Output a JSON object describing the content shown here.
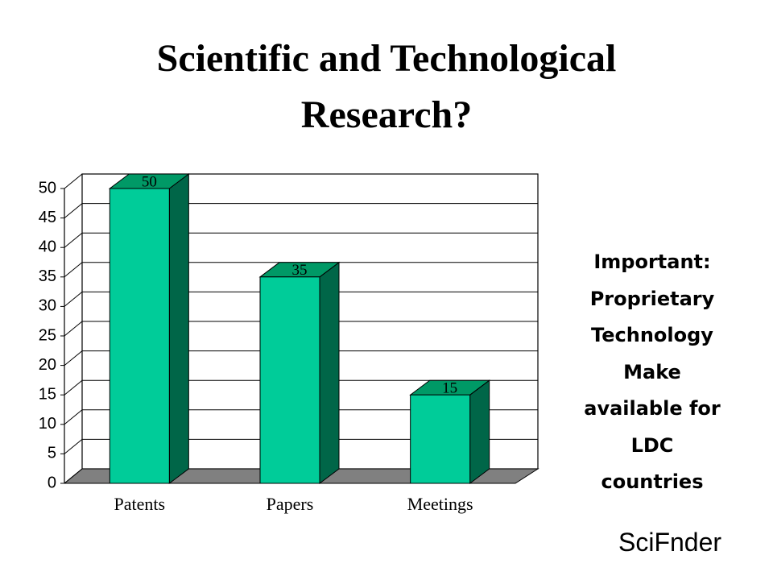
{
  "chart_data": {
    "type": "bar3d",
    "title": "Scientific and Technological Research?",
    "categories": [
      "Patents",
      "Papers",
      "Meetings"
    ],
    "values": [
      50,
      35,
      15
    ],
    "color": "#00cc99",
    "side_color": "#006648",
    "top_color": "#009966",
    "floor_color": "#808080",
    "ylim": [
      0,
      50
    ],
    "yticks": [
      0,
      5,
      10,
      15,
      20,
      25,
      30,
      35,
      40,
      45,
      50
    ],
    "grid": true
  },
  "side_note": [
    "Important:",
    "Proprietary",
    "Technology",
    "Make",
    "available for",
    "LDC",
    "countries"
  ],
  "footer": "SciFnder"
}
